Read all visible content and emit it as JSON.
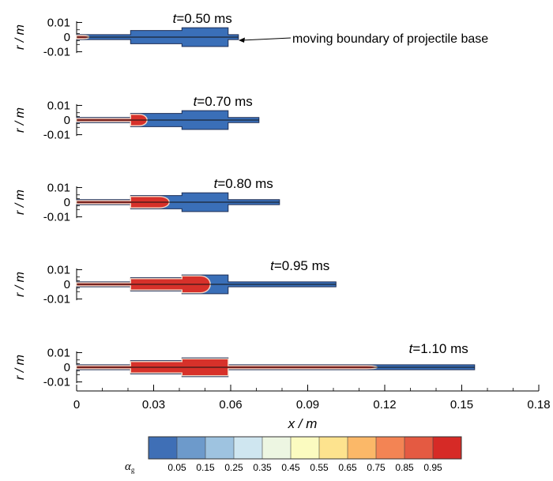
{
  "chart_data": {
    "type": "heatmap",
    "xlabel": "x / m",
    "ylabel": "r / m",
    "xlim": [
      0,
      0.18
    ],
    "x_ticks": [
      0,
      0.03,
      0.06,
      0.09,
      0.12,
      0.15,
      0.18
    ],
    "x_tick_labels": [
      "0",
      "0.03",
      "0.06",
      "0.09",
      "0.12",
      "0.15",
      "0.18"
    ],
    "ylim": [
      -0.01,
      0.01
    ],
    "y_ticks": [
      0.01,
      0,
      -0.01
    ],
    "y_tick_labels": [
      "0.01",
      "0",
      "-0.01"
    ],
    "domain_profile": [
      {
        "x_start": 0,
        "x_end": 0.021,
        "r": 0.0018
      },
      {
        "x_start": 0.021,
        "x_end": 0.041,
        "r": 0.0048
      },
      {
        "x_start": 0.041,
        "x_end": 0.059,
        "r": 0.0068
      },
      {
        "x_start": 0.059,
        "x_end": null,
        "r": 0.0018
      }
    ],
    "panels": [
      {
        "time_label": "t",
        "time_value": "=0.50 ms",
        "boundary_x": 0.063,
        "gas_front_x": 0.006
      },
      {
        "time_label": "t",
        "time_value": "=0.70 ms",
        "boundary_x": 0.071,
        "gas_front_x": 0.029
      },
      {
        "time_label": "t",
        "time_value": "=0.80 ms",
        "boundary_x": 0.079,
        "gas_front_x": 0.038
      },
      {
        "time_label": "t",
        "time_value": "=0.95 ms",
        "boundary_x": 0.101,
        "gas_front_x": 0.054
      },
      {
        "time_label": "t",
        "time_value": "=1.10 ms",
        "boundary_x": 0.155,
        "gas_front_x": 0.119
      }
    ],
    "annotation": "moving boundary of projectile base",
    "colorbar": {
      "title": "α",
      "title_subscript": "g",
      "levels": [
        "0.05",
        "0.15",
        "0.25",
        "0.35",
        "0.45",
        "0.55",
        "0.65",
        "0.75",
        "0.85",
        "0.95"
      ],
      "colors": [
        "#3f6fb6",
        "#6d9acb",
        "#9ec3e0",
        "#cfe6f0",
        "#edf6e2",
        "#fbfbc0",
        "#fde38e",
        "#fbb868",
        "#f38454",
        "#e45a42",
        "#d62a26"
      ]
    },
    "fill_colors": {
      "liquid": "#3a6fb8",
      "gas": "#d7312a",
      "interface": "#f4d7c4"
    }
  }
}
